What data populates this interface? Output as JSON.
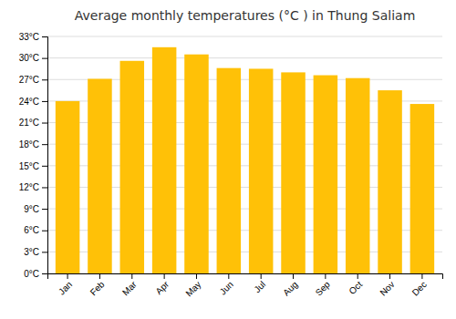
{
  "chart_data": {
    "type": "bar",
    "title": "Average monthly temperatures (°C ) in Thung Saliam",
    "categories": [
      "Jan",
      "Feb",
      "Mar",
      "Apr",
      "May",
      "Jun",
      "Jul",
      "Aug",
      "Sep",
      "Oct",
      "Nov",
      "Dec"
    ],
    "values": [
      24.0,
      27.1,
      29.6,
      31.5,
      30.5,
      28.6,
      28.5,
      28.0,
      27.6,
      27.2,
      25.5,
      23.6
    ],
    "color": "#FFC107",
    "ylim": [
      0,
      33
    ],
    "yticks": [
      {
        "value": 0,
        "label": "0°C"
      },
      {
        "value": 3,
        "label": "3°C"
      },
      {
        "value": 6,
        "label": "6°C"
      },
      {
        "value": 9,
        "label": "9°C"
      },
      {
        "value": 12,
        "label": "12°C"
      },
      {
        "value": 15,
        "label": "15°C"
      },
      {
        "value": 18,
        "label": "18°C"
      },
      {
        "value": 21,
        "label": "21°C"
      },
      {
        "value": 24,
        "label": "24°C"
      },
      {
        "value": 27,
        "label": "27°C"
      },
      {
        "value": 30,
        "label": "30°C"
      },
      {
        "value": 33,
        "label": "33°C"
      }
    ],
    "grid": true
  }
}
